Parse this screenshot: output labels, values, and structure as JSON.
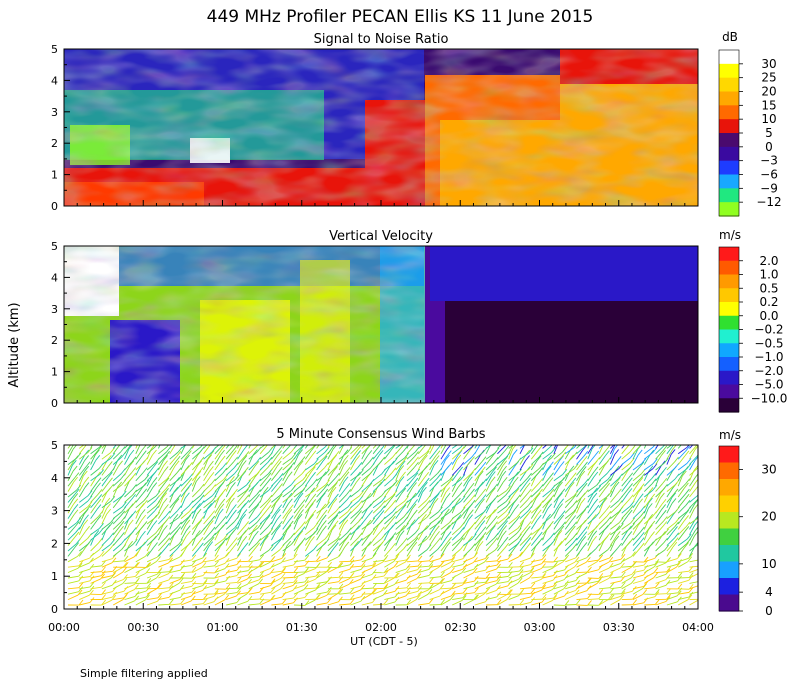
{
  "title": "449 MHz Profiler PECAN Ellis KS 11 June 2015",
  "ylabel": "Altitude (km)",
  "xlabel": "UT  (CDT - 5)",
  "footnote": "Simple filtering applied",
  "x_tick_labels": [
    "00:00",
    "00:30",
    "01:00",
    "01:30",
    "02:00",
    "02:30",
    "03:00",
    "03:30",
    "04:00"
  ],
  "y_tick_labels": [
    "0",
    "1",
    "2",
    "3",
    "4",
    "5"
  ],
  "chart_data": [
    {
      "type": "heatmap",
      "title": "Signal to Noise Ratio",
      "unit": "dB",
      "xlim": [
        "00:00",
        "04:00"
      ],
      "ylim": [
        0,
        5
      ],
      "colorbar": {
        "labels": [
          "30",
          "25",
          "20",
          "15",
          "10",
          "5",
          "0",
          "−3",
          "−6",
          "−9",
          "−12"
        ],
        "colors": [
          "#ffffff",
          "#ffff00",
          "#ffd800",
          "#ffa800",
          "#ff6a00",
          "#e8140a",
          "#4a0a6e",
          "#3a0aa0",
          "#1e3cff",
          "#18a8ff",
          "#20e880",
          "#90ff20"
        ]
      }
    },
    {
      "type": "heatmap",
      "title": "Vertical Velocity",
      "unit": "m/s",
      "xlim": [
        "00:00",
        "04:00"
      ],
      "ylim": [
        0,
        5
      ],
      "colorbar": {
        "labels": [
          "2.0",
          "1.0",
          "0.5",
          "0.2",
          "0.0",
          "−0.2",
          "−0.5",
          "−1.0",
          "−2.0",
          "−5.0",
          "−10.0"
        ],
        "colors": [
          "#ff1a1a",
          "#ff5a00",
          "#ff9a00",
          "#ffc800",
          "#ffff00",
          "#30e030",
          "#20f0d0",
          "#10a8ff",
          "#1460ff",
          "#2a18c8",
          "#4a0a9e",
          "#2a0038"
        ]
      }
    },
    {
      "type": "scatter",
      "title": "5 Minute Consensus Wind Barbs",
      "unit": "m/s",
      "xlim": [
        "00:00",
        "04:00"
      ],
      "ylim": [
        0,
        5
      ],
      "colorbar": {
        "labels": [
          "30",
          "20",
          "10",
          "4",
          "0"
        ],
        "label_levels": [
          30,
          20,
          10,
          4,
          0
        ],
        "range": [
          0,
          35
        ],
        "colors": [
          "#ff1a1a",
          "#ff6a00",
          "#ffa800",
          "#ffd000",
          "#b8e820",
          "#40d040",
          "#20c8a0",
          "#18a0ff",
          "#1c20e0",
          "#4a0a8e"
        ]
      }
    }
  ]
}
